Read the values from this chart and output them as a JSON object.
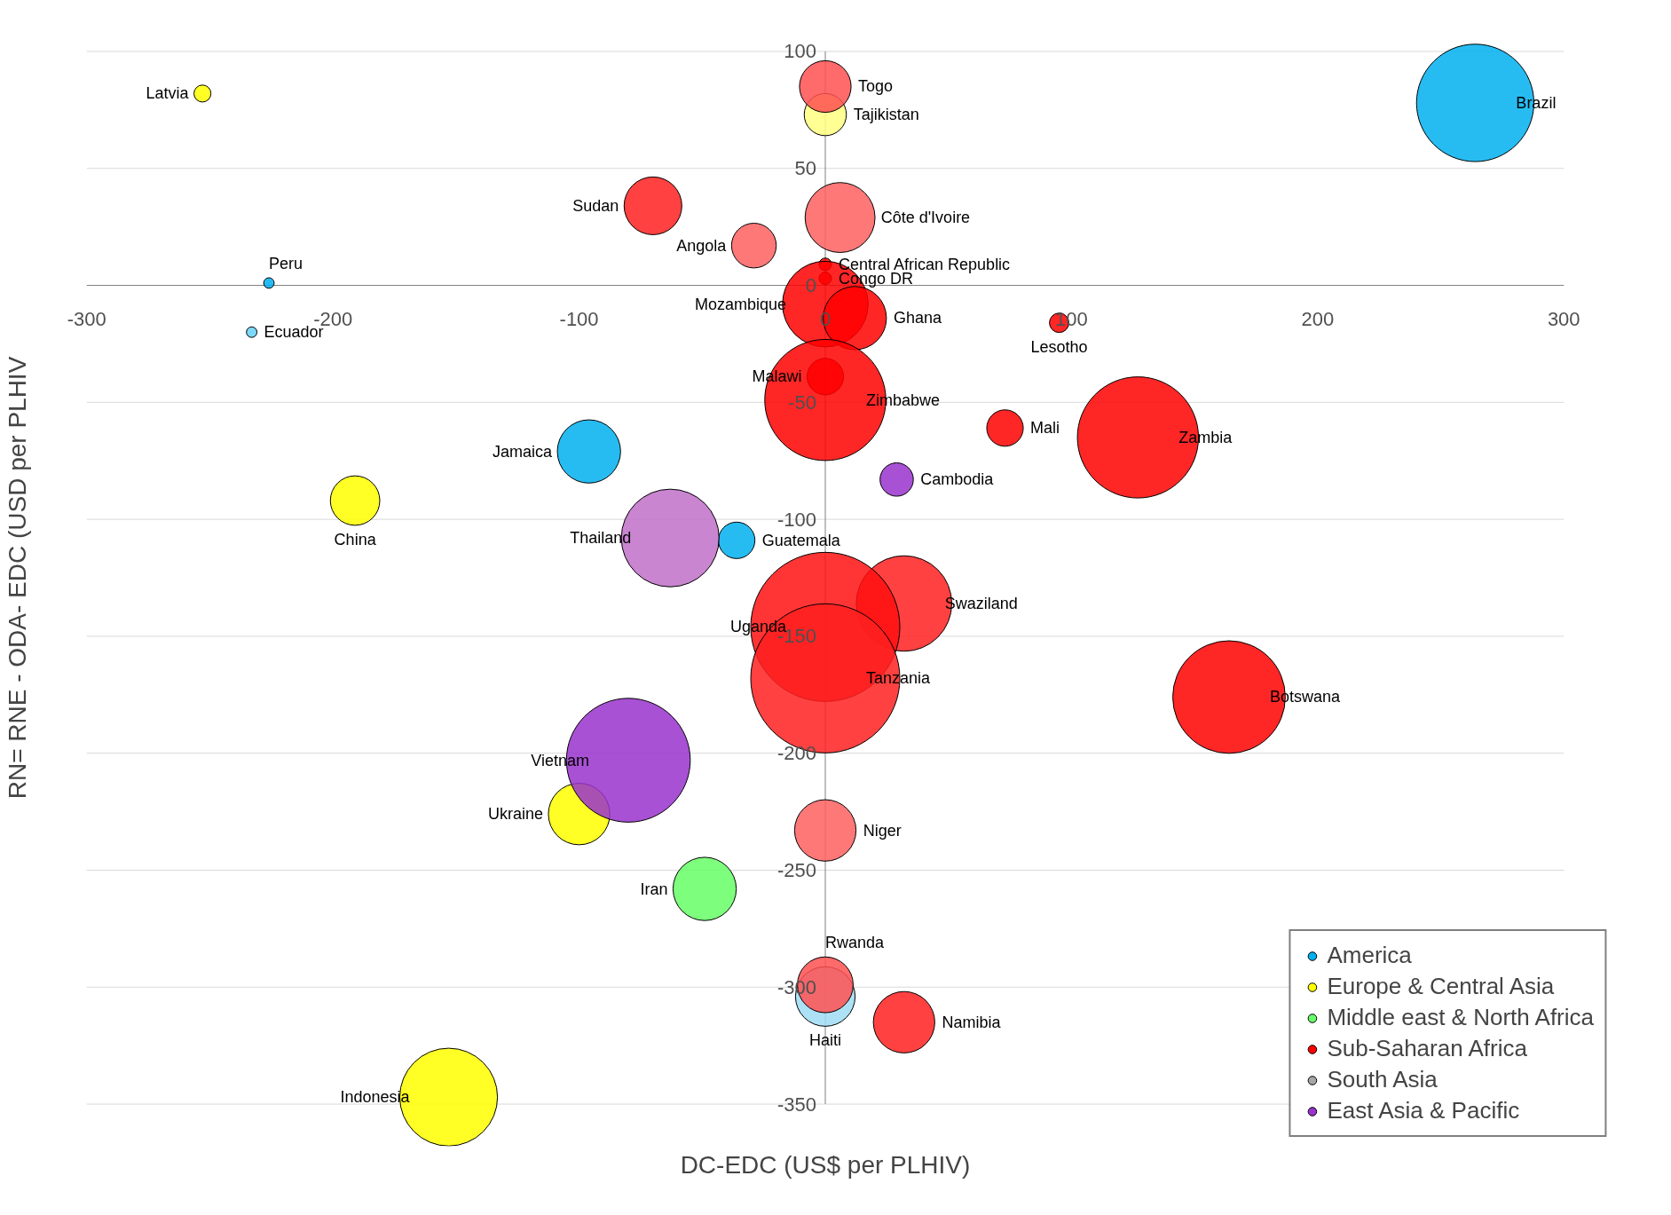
{
  "chart_data": {
    "type": "bubble",
    "xlabel": "DC-EDC (US$ per PLHIV)",
    "ylabel": "RN= RNE - ODA- EDC (USD per PLHIV",
    "xlim": [
      -300,
      300
    ],
    "ylim": [
      -350,
      100
    ],
    "xticks": [
      -300,
      -200,
      -100,
      0,
      100,
      200,
      300
    ],
    "yticks": [
      -350,
      -300,
      -250,
      -200,
      -150,
      -100,
      -50,
      0,
      50,
      100
    ],
    "grid": "y",
    "legend": "bottom right",
    "series": [
      {
        "name": "America",
        "color": "#00b0f0",
        "x": [
          -226,
          -233,
          264,
          -96,
          -36,
          0
        ],
        "values": [
          1,
          -20,
          78,
          -71,
          -109,
          -304
        ],
        "sizes": [
          0.005,
          0.005,
          0.62,
          0.18,
          0.06,
          0.16
        ],
        "colors": [
          "#00b0f0",
          "#66d0f6",
          "#00b0f0",
          "#00b0f0",
          "#00b0f0",
          "#9fdcf4"
        ]
      },
      {
        "name": "Europe & Central Asia",
        "color": "#ffff00",
        "x": [
          -253,
          0,
          -191,
          -100,
          -153
        ],
        "values": [
          82,
          73,
          -92,
          -226,
          -347
        ],
        "sizes": [
          0.013,
          0.08,
          0.11,
          0.17,
          0.43
        ],
        "colors": [
          "#ffff00",
          "#ffff80",
          "#ffff00",
          "#ffff00",
          "#ffff00"
        ]
      },
      {
        "name": "Middle east & North Africa",
        "color": "#66ff66",
        "x": [
          -49
        ],
        "values": [
          -258
        ],
        "sizes": [
          0.18
        ],
        "colors": [
          "#66ff66"
        ]
      },
      {
        "name": "Sub-Saharan Africa",
        "color": "#ff0000",
        "x": [
          0,
          -70,
          6,
          -29,
          0,
          0,
          0,
          12,
          95,
          0,
          0,
          73,
          127,
          32,
          0,
          0,
          164,
          0,
          0,
          32
        ],
        "values": [
          85,
          34,
          29,
          17,
          9,
          3,
          -8,
          -14,
          -16,
          -39,
          -49,
          -61,
          -65,
          -136,
          -146,
          -168,
          -176,
          -233,
          -299,
          -315
        ],
        "sizes": [
          0.12,
          0.15,
          0.22,
          0.09,
          0.007,
          0.007,
          0.33,
          0.18,
          0.017,
          0.06,
          0.66,
          0.06,
          0.66,
          0.41,
          1,
          1,
          0.57,
          0.17,
          0.14,
          0.17
        ],
        "colors": [
          "#ff5050",
          "#ff2020",
          "#ff6060",
          "#ff6060",
          "#ff0000",
          "#ff0000",
          "#ff0000",
          "#ff0000",
          "#ff0000",
          "#ff0000",
          "#ff0000",
          "#ff0000",
          "#ff0000",
          "#ff2020",
          "#ff1010",
          "#ff2020",
          "#ff0000",
          "#ff6060",
          "#ff5050",
          "#ff2020"
        ]
      },
      {
        "name": "South Asia",
        "color": "#a6a6a6"
      },
      {
        "name": "East Asia & Pacific",
        "color": "#9933cc",
        "x": [
          29,
          -63,
          -80
        ],
        "values": [
          -83,
          -108,
          -203
        ],
        "sizes": [
          0.05,
          0.43,
          0.69
        ],
        "colors": [
          "#9933cc",
          "#c070c8",
          "#9933cc"
        ]
      }
    ],
    "annotations": [
      {
        "text": "Latvia",
        "x": -253,
        "y": 82
      },
      {
        "text": "Peru",
        "x": -226,
        "y": 1
      },
      {
        "text": "Ecuador",
        "x": -233,
        "y": -20
      },
      {
        "text": "Brazil",
        "x": 264,
        "y": 78
      },
      {
        "text": "Togo",
        "x": 0,
        "y": 85
      },
      {
        "text": "Tajikistan",
        "x": 0,
        "y": 73
      },
      {
        "text": "Sudan",
        "x": -70,
        "y": 34
      },
      {
        "text": "Côte d'Ivoire",
        "x": 6,
        "y": 29
      },
      {
        "text": "Angola",
        "x": -29,
        "y": 17
      },
      {
        "text": "Central African Republic",
        "x": 0,
        "y": 9
      },
      {
        "text": "Congo DR",
        "x": 0,
        "y": 3
      },
      {
        "text": "Mozambique",
        "x": 0,
        "y": -8
      },
      {
        "text": "Ghana",
        "x": 12,
        "y": -14
      },
      {
        "text": "Lesotho",
        "x": 95,
        "y": -16
      },
      {
        "text": "Malawi",
        "x": 0,
        "y": -39
      },
      {
        "text": "Zimbabwe",
        "x": 0,
        "y": -49
      },
      {
        "text": "Mali",
        "x": 73,
        "y": -61
      },
      {
        "text": "Zambia",
        "x": 127,
        "y": -65
      },
      {
        "text": "Jamaica",
        "x": -96,
        "y": -71
      },
      {
        "text": "Cambodia",
        "x": 29,
        "y": -83
      },
      {
        "text": "China",
        "x": -191,
        "y": -92
      },
      {
        "text": "Guatemala",
        "x": -36,
        "y": -109
      },
      {
        "text": "Thailand",
        "x": -63,
        "y": -108
      },
      {
        "text": "Swaziland",
        "x": 32,
        "y": -136
      },
      {
        "text": "Uganda",
        "x": 0,
        "y": -146
      },
      {
        "text": "Tanzania",
        "x": 0,
        "y": -168
      },
      {
        "text": "Botswana",
        "x": 164,
        "y": -176
      },
      {
        "text": "Vietnam",
        "x": -80,
        "y": -203
      },
      {
        "text": "Ukraine",
        "x": -100,
        "y": -226
      },
      {
        "text": "Niger",
        "x": 0,
        "y": -233
      },
      {
        "text": "Iran",
        "x": -49,
        "y": -258
      },
      {
        "text": "Rwanda",
        "x": 0,
        "y": -299
      },
      {
        "text": "Haiti",
        "x": 0,
        "y": -304
      },
      {
        "text": "Namibia",
        "x": 32,
        "y": -315
      },
      {
        "text": "Indonesia",
        "x": -153,
        "y": -347
      }
    ]
  }
}
